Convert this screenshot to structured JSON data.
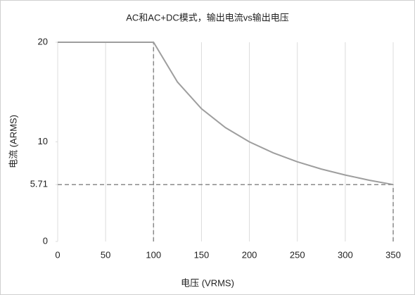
{
  "chart_data": {
    "type": "line",
    "title": "AC和AC+DC模式，输出电流vs输出电压",
    "xlabel": "电压 (VRMS)",
    "ylabel": "电流 (ARMS)",
    "x": [
      0,
      100,
      125,
      150,
      175,
      200,
      225,
      250,
      275,
      300,
      325,
      350
    ],
    "series": [
      {
        "color": "#9e9e9e",
        "values": [
          20,
          20,
          16,
          13.33,
          11.43,
          10,
          8.89,
          8,
          7.27,
          6.67,
          6.15,
          5.71
        ]
      }
    ],
    "xlim": [
      0,
      350
    ],
    "xticks": [
      0,
      50,
      100,
      150,
      200,
      250,
      300,
      350
    ],
    "ylim": [
      0,
      20
    ],
    "yticks": [
      0,
      5.71,
      10,
      20
    ],
    "grid": "x",
    "reference_color": "#8a8a8a"
  }
}
